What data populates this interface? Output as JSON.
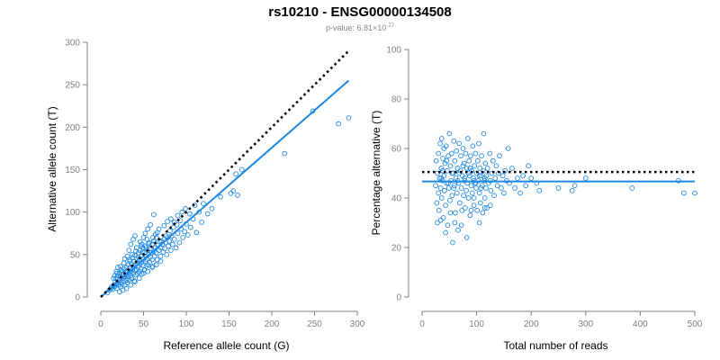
{
  "title": "rs10210 - ENSG00000134508",
  "subtitle": {
    "prefix": "p-value: 6.81×10",
    "exponent": "-27"
  },
  "colors": {
    "points": "#1e88e5",
    "fit": "#1e88e5",
    "reference": "#000000",
    "axis": "#808080"
  },
  "chart_data": [
    {
      "type": "scatter",
      "xlabel": "Reference allele count (G)",
      "ylabel": "Alternative allele count (T)",
      "xlim": [
        0,
        300
      ],
      "ylim": [
        0,
        300
      ],
      "xticks": [
        "0",
        "50",
        "100",
        "150",
        "200",
        "250",
        "300"
      ],
      "yticks": [
        "0",
        "50",
        "100",
        "150",
        "200",
        "250",
        "300"
      ],
      "grid": false,
      "reference_line": {
        "style": "dotted",
        "x": [
          0,
          290
        ],
        "y": [
          0,
          290
        ]
      },
      "fit_line": {
        "style": "solid",
        "x": [
          0,
          290
        ],
        "y": [
          0,
          255
        ]
      },
      "points": [
        [
          8,
          5
        ],
        [
          10,
          8
        ],
        [
          12,
          10
        ],
        [
          13,
          12
        ],
        [
          14,
          9
        ],
        [
          15,
          14
        ],
        [
          16,
          12
        ],
        [
          17,
          18
        ],
        [
          18,
          15
        ],
        [
          18,
          22
        ],
        [
          19,
          10
        ],
        [
          20,
          17
        ],
        [
          20,
          25
        ],
        [
          21,
          14
        ],
        [
          22,
          20
        ],
        [
          22,
          28
        ],
        [
          23,
          12
        ],
        [
          23,
          24
        ],
        [
          24,
          18
        ],
        [
          25,
          15
        ],
        [
          25,
          30
        ],
        [
          26,
          22
        ],
        [
          26,
          27
        ],
        [
          27,
          19
        ],
        [
          27,
          33
        ],
        [
          28,
          24
        ],
        [
          28,
          14
        ],
        [
          29,
          29
        ],
        [
          30,
          20
        ],
        [
          30,
          35
        ],
        [
          30,
          26
        ],
        [
          31,
          17
        ],
        [
          31,
          31
        ],
        [
          32,
          24
        ],
        [
          32,
          38
        ],
        [
          33,
          28
        ],
        [
          33,
          20
        ],
        [
          34,
          34
        ],
        [
          34,
          44
        ],
        [
          35,
          25
        ],
        [
          35,
          30
        ],
        [
          36,
          39
        ],
        [
          36,
          22
        ],
        [
          37,
          33
        ],
        [
          37,
          46
        ],
        [
          38,
          28
        ],
        [
          38,
          36
        ],
        [
          39,
          42
        ],
        [
          39,
          19
        ],
        [
          40,
          31
        ],
        [
          40,
          49
        ],
        [
          41,
          26
        ],
        [
          41,
          38
        ],
        [
          42,
          45
        ],
        [
          42,
          32
        ],
        [
          43,
          40
        ],
        [
          43,
          28
        ],
        [
          44,
          52
        ],
        [
          44,
          36
        ],
        [
          45,
          30
        ],
        [
          45,
          44
        ],
        [
          46,
          39
        ],
        [
          46,
          55
        ],
        [
          47,
          33
        ],
        [
          47,
          48
        ],
        [
          48,
          41
        ],
        [
          48,
          27
        ],
        [
          49,
          58
        ],
        [
          50,
          37
        ],
        [
          50,
          45
        ],
        [
          51,
          32
        ],
        [
          51,
          52
        ],
        [
          52,
          42
        ],
        [
          52,
          60
        ],
        [
          53,
          36
        ],
        [
          53,
          48
        ],
        [
          54,
          44
        ],
        [
          55,
          55
        ],
        [
          55,
          38
        ],
        [
          56,
          50
        ],
        [
          56,
          63
        ],
        [
          57,
          41
        ],
        [
          58,
          47
        ],
        [
          58,
          57
        ],
        [
          59,
          52
        ],
        [
          60,
          44
        ],
        [
          60,
          62
        ],
        [
          61,
          36
        ],
        [
          62,
          54
        ],
        [
          62,
          66
        ],
        [
          63,
          48
        ],
        [
          64,
          58
        ],
        [
          65,
          52
        ],
        [
          65,
          70
        ],
        [
          66,
          44
        ],
        [
          67,
          61
        ],
        [
          68,
          55
        ],
        [
          69,
          65
        ],
        [
          70,
          48
        ],
        [
          70,
          58
        ],
        [
          72,
          62
        ],
        [
          73,
          53
        ],
        [
          74,
          68
        ],
        [
          75,
          57
        ],
        [
          76,
          64
        ],
        [
          77,
          50
        ],
        [
          78,
          70
        ],
        [
          79,
          60
        ],
        [
          80,
          66
        ],
        [
          82,
          55
        ],
        [
          83,
          72
        ],
        [
          84,
          62
        ],
        [
          86,
          68
        ],
        [
          88,
          58
        ],
        [
          90,
          75
        ],
        [
          92,
          64
        ],
        [
          94,
          80
        ],
        [
          96,
          70
        ],
        [
          98,
          77
        ],
        [
          100,
          86
        ],
        [
          102,
          73
        ],
        [
          105,
          82
        ],
        [
          108,
          92
        ],
        [
          112,
          76
        ],
        [
          118,
          88
        ],
        [
          125,
          98
        ],
        [
          20,
          35
        ],
        [
          28,
          45
        ],
        [
          33,
          55
        ],
        [
          35,
          62
        ],
        [
          38,
          68
        ],
        [
          40,
          72
        ],
        [
          24,
          32
        ],
        [
          18,
          30
        ],
        [
          15,
          22
        ],
        [
          42,
          58
        ],
        [
          46,
          65
        ],
        [
          50,
          70
        ],
        [
          52,
          75
        ],
        [
          55,
          80
        ],
        [
          58,
          85
        ],
        [
          62,
          97
        ],
        [
          45,
          22
        ],
        [
          50,
          28
        ],
        [
          55,
          30
        ],
        [
          60,
          35
        ],
        [
          65,
          38
        ],
        [
          70,
          42
        ],
        [
          30,
          10
        ],
        [
          35,
          14
        ],
        [
          40,
          18
        ],
        [
          26,
          8
        ],
        [
          22,
          6
        ],
        [
          48,
          62
        ],
        [
          54,
          68
        ],
        [
          64,
          74
        ],
        [
          68,
          80
        ],
        [
          74,
          84
        ],
        [
          78,
          89
        ],
        [
          82,
          92
        ],
        [
          86,
          88
        ],
        [
          90,
          96
        ],
        [
          95,
          100
        ],
        [
          99,
          104
        ],
        [
          104,
          98
        ],
        [
          110,
          108
        ],
        [
          115,
          100
        ],
        [
          120,
          110
        ],
        [
          130,
          104
        ],
        [
          140,
          118
        ],
        [
          152,
          122
        ],
        [
          155,
          125
        ],
        [
          160,
          120
        ],
        [
          158,
          145
        ],
        [
          165,
          150
        ],
        [
          215,
          169
        ],
        [
          248,
          219
        ],
        [
          278,
          204
        ],
        [
          290,
          211
        ],
        [
          16,
          25
        ],
        [
          19,
          28
        ],
        [
          23,
          36
        ],
        [
          27,
          40
        ],
        [
          31,
          48
        ],
        [
          34,
          42
        ],
        [
          37,
          50
        ],
        [
          41,
          54
        ],
        [
          44,
          47
        ],
        [
          47,
          60
        ],
        [
          49,
          53
        ],
        [
          53,
          58
        ],
        [
          57,
          64
        ],
        [
          61,
          70
        ],
        [
          66,
          76
        ],
        [
          71,
          66
        ],
        [
          76,
          72
        ],
        [
          81,
          78
        ],
        [
          85,
          82
        ],
        [
          89,
          85
        ],
        [
          93,
          90
        ]
      ]
    },
    {
      "type": "scatter",
      "xlabel": "Total number of reads",
      "ylabel": "Percentage alternative (T)",
      "xlim": [
        0,
        500
      ],
      "ylim": [
        0,
        100
      ],
      "xticks": [
        "0",
        "100",
        "200",
        "300",
        "400",
        "500"
      ],
      "yticks": [
        "0",
        "20",
        "40",
        "60",
        "80",
        "100"
      ],
      "grid": false,
      "reference_line": {
        "style": "dotted",
        "x": [
          0,
          500
        ],
        "y": [
          50.5,
          50.5
        ]
      },
      "fit_line": {
        "style": "solid",
        "x": [
          0,
          500
        ],
        "y": [
          46.7,
          46.7
        ]
      },
      "points": [
        [
          25,
          45
        ],
        [
          26,
          55
        ],
        [
          27,
          38
        ],
        [
          28,
          50
        ],
        [
          30,
          42
        ],
        [
          30,
          58
        ],
        [
          31,
          35
        ],
        [
          32,
          48
        ],
        [
          33,
          62
        ],
        [
          34,
          44
        ],
        [
          35,
          52
        ],
        [
          36,
          40
        ],
        [
          36,
          64
        ],
        [
          37,
          47
        ],
        [
          38,
          56
        ],
        [
          39,
          32
        ],
        [
          40,
          49
        ],
        [
          40,
          60
        ],
        [
          41,
          43
        ],
        [
          42,
          54
        ],
        [
          43,
          37
        ],
        [
          44,
          61
        ],
        [
          45,
          46
        ],
        [
          46,
          51
        ],
        [
          47,
          29
        ],
        [
          48,
          57
        ],
        [
          49,
          44
        ],
        [
          50,
          66
        ],
        [
          51,
          39
        ],
        [
          52,
          53
        ],
        [
          53,
          47
        ],
        [
          54,
          58
        ],
        [
          55,
          41
        ],
        [
          56,
          22
        ],
        [
          57,
          50
        ],
        [
          58,
          63
        ],
        [
          59,
          45
        ],
        [
          60,
          55
        ],
        [
          61,
          34
        ],
        [
          62,
          48
        ],
        [
          63,
          59
        ],
        [
          64,
          42
        ],
        [
          65,
          52
        ],
        [
          66,
          27
        ],
        [
          67,
          46
        ],
        [
          68,
          62
        ],
        [
          69,
          38
        ],
        [
          70,
          51
        ],
        [
          71,
          57
        ],
        [
          72,
          44
        ],
        [
          73,
          35
        ],
        [
          74,
          49
        ],
        [
          75,
          60
        ],
        [
          76,
          41
        ],
        [
          77,
          54
        ],
        [
          78,
          47
        ],
        [
          79,
          36
        ],
        [
          80,
          58
        ],
        [
          81,
          43
        ],
        [
          82,
          52
        ],
        [
          83,
          46
        ],
        [
          84,
          64
        ],
        [
          85,
          40
        ],
        [
          86,
          55
        ],
        [
          87,
          49
        ],
        [
          88,
          33
        ],
        [
          89,
          57
        ],
        [
          90,
          45
        ],
        [
          91,
          51
        ],
        [
          92,
          42
        ],
        [
          93,
          61
        ],
        [
          94,
          48
        ],
        [
          95,
          37
        ],
        [
          96,
          53
        ],
        [
          97,
          46
        ],
        [
          98,
          58
        ],
        [
          99,
          44
        ],
        [
          100,
          50
        ],
        [
          101,
          35
        ],
        [
          102,
          55
        ],
        [
          103,
          47
        ],
        [
          104,
          62
        ],
        [
          105,
          42
        ],
        [
          106,
          52
        ],
        [
          107,
          38
        ],
        [
          108,
          49
        ],
        [
          109,
          57
        ],
        [
          110,
          45
        ],
        [
          111,
          34
        ],
        [
          112,
          51
        ],
        [
          113,
          66
        ],
        [
          114,
          47
        ],
        [
          115,
          40
        ],
        [
          116,
          54
        ],
        [
          117,
          44
        ],
        [
          118,
          49
        ],
        [
          119,
          36
        ],
        [
          120,
          52
        ],
        [
          122,
          46
        ],
        [
          124,
          58
        ],
        [
          126,
          43
        ],
        [
          128,
          50
        ],
        [
          130,
          55
        ],
        [
          132,
          41
        ],
        [
          134,
          48
        ],
        [
          136,
          53
        ],
        [
          138,
          45
        ],
        [
          140,
          50
        ],
        [
          142,
          57
        ],
        [
          145,
          44
        ],
        [
          148,
          49
        ],
        [
          150,
          42
        ],
        [
          152,
          51
        ],
        [
          155,
          47
        ],
        [
          158,
          60
        ],
        [
          160,
          46
        ],
        [
          165,
          52
        ],
        [
          170,
          44
        ],
        [
          175,
          48
        ],
        [
          180,
          42
        ],
        [
          185,
          49
        ],
        [
          190,
          45
        ],
        [
          195,
          53
        ],
        [
          200,
          48
        ],
        [
          210,
          46
        ],
        [
          215,
          43
        ],
        [
          250,
          44
        ],
        [
          275,
          43
        ],
        [
          280,
          45
        ],
        [
          300,
          48
        ],
        [
          385,
          44
        ],
        [
          470,
          47
        ],
        [
          480,
          42
        ],
        [
          500,
          42
        ],
        [
          28,
          30
        ],
        [
          34,
          31
        ],
        [
          43,
          26
        ],
        [
          52,
          34
        ],
        [
          60,
          30
        ],
        [
          72,
          29
        ],
        [
          82,
          24
        ],
        [
          90,
          35
        ],
        [
          95,
          40
        ],
        [
          105,
          30
        ],
        [
          115,
          36
        ],
        [
          125,
          37
        ],
        [
          35,
          48
        ],
        [
          45,
          55
        ],
        [
          55,
          50
        ],
        [
          65,
          47
        ],
        [
          75,
          53
        ],
        [
          85,
          50
        ],
        [
          95,
          47
        ],
        [
          105,
          49
        ],
        [
          115,
          48
        ],
        [
          125,
          47
        ],
        [
          38,
          51
        ],
        [
          48,
          46
        ],
        [
          58,
          44
        ],
        [
          68,
          50
        ],
        [
          78,
          48
        ],
        [
          88,
          52
        ],
        [
          98,
          46
        ],
        [
          108,
          44
        ]
      ]
    }
  ]
}
